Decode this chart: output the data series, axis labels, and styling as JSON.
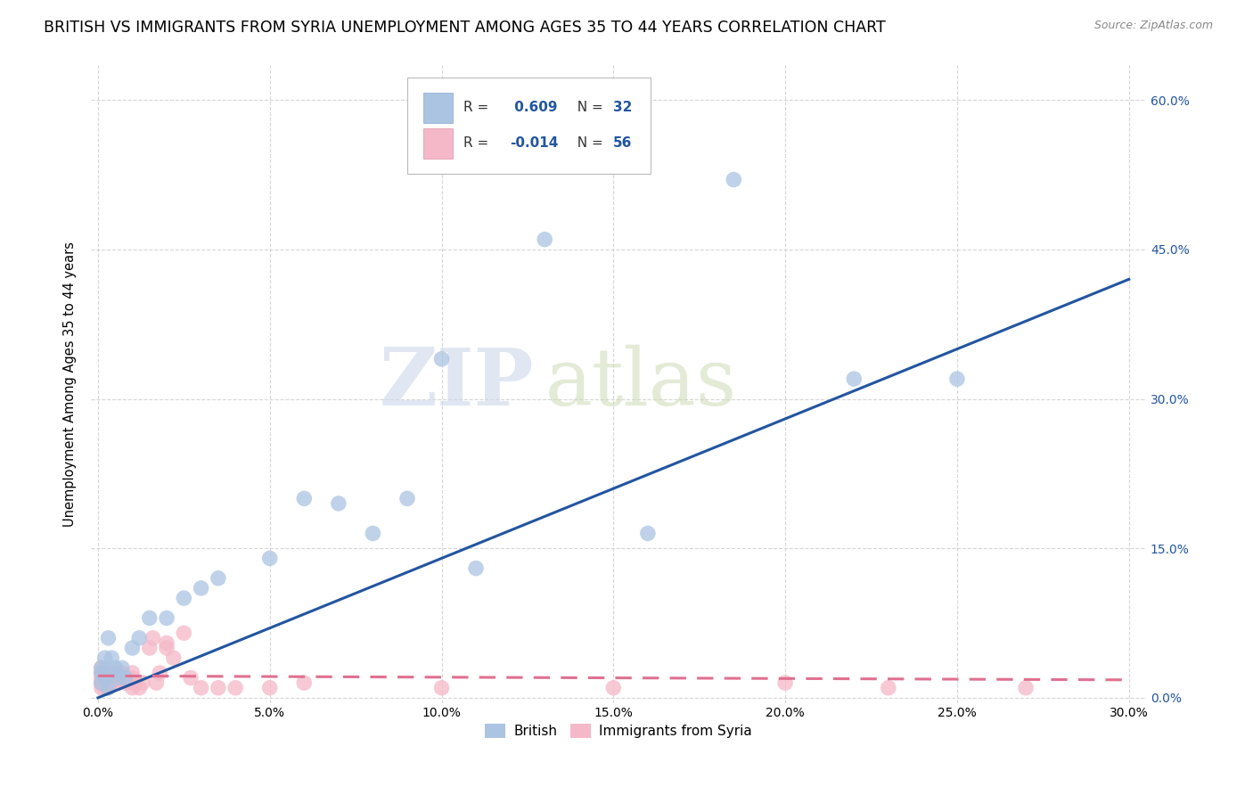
{
  "title": "BRITISH VS IMMIGRANTS FROM SYRIA UNEMPLOYMENT AMONG AGES 35 TO 44 YEARS CORRELATION CHART",
  "source": "Source: ZipAtlas.com",
  "ylabel": "Unemployment Among Ages 35 to 44 years",
  "x_ticks": [
    0.0,
    0.05,
    0.1,
    0.15,
    0.2,
    0.25,
    0.3
  ],
  "x_tick_labels": [
    "0.0%",
    "5.0%",
    "10.0%",
    "15.0%",
    "20.0%",
    "25.0%",
    "30.0%"
  ],
  "y_ticks": [
    0.0,
    0.15,
    0.3,
    0.45,
    0.6
  ],
  "y_tick_labels_right": [
    "0.0%",
    "15.0%",
    "30.0%",
    "45.0%",
    "60.0%"
  ],
  "xlim": [
    -0.002,
    0.305
  ],
  "ylim": [
    -0.005,
    0.635
  ],
  "british_color": "#aac4e2",
  "syria_color": "#f5b8c8",
  "british_line_color": "#2255a0",
  "syria_line_color": "#e07090",
  "british_R": 0.609,
  "british_N": 32,
  "syria_R": -0.014,
  "syria_N": 56,
  "legend_british_label": "British",
  "legend_syria_label": "Immigrants from Syria",
  "watermark_zip": "ZIP",
  "watermark_atlas": "atlas",
  "background_color": "#ffffff",
  "grid_color": "#cccccc",
  "title_fontsize": 12.5,
  "axis_fontsize": 10.5,
  "british_x": [
    0.001,
    0.001,
    0.001,
    0.002,
    0.002,
    0.003,
    0.003,
    0.004,
    0.004,
    0.005,
    0.006,
    0.007,
    0.008,
    0.01,
    0.012,
    0.015,
    0.02,
    0.025,
    0.03,
    0.035,
    0.05,
    0.06,
    0.07,
    0.08,
    0.09,
    0.1,
    0.11,
    0.13,
    0.16,
    0.185,
    0.22,
    0.25
  ],
  "british_y": [
    0.03,
    0.015,
    0.025,
    0.04,
    0.02,
    0.06,
    0.01,
    0.025,
    0.04,
    0.03,
    0.02,
    0.03,
    0.02,
    0.05,
    0.06,
    0.08,
    0.08,
    0.1,
    0.11,
    0.12,
    0.14,
    0.2,
    0.195,
    0.165,
    0.2,
    0.34,
    0.13,
    0.46,
    0.165,
    0.52,
    0.32,
    0.32
  ],
  "syria_x": [
    0.001,
    0.001,
    0.001,
    0.001,
    0.001,
    0.001,
    0.001,
    0.001,
    0.002,
    0.002,
    0.002,
    0.002,
    0.002,
    0.003,
    0.003,
    0.003,
    0.003,
    0.004,
    0.004,
    0.004,
    0.005,
    0.005,
    0.005,
    0.006,
    0.006,
    0.007,
    0.007,
    0.008,
    0.008,
    0.009,
    0.01,
    0.01,
    0.01,
    0.01,
    0.011,
    0.012,
    0.013,
    0.015,
    0.016,
    0.017,
    0.018,
    0.02,
    0.02,
    0.022,
    0.025,
    0.027,
    0.03,
    0.035,
    0.04,
    0.05,
    0.06,
    0.1,
    0.15,
    0.2,
    0.23,
    0.27
  ],
  "syria_y": [
    0.02,
    0.025,
    0.015,
    0.03,
    0.01,
    0.02,
    0.025,
    0.015,
    0.025,
    0.01,
    0.015,
    0.02,
    0.025,
    0.015,
    0.02,
    0.01,
    0.025,
    0.015,
    0.02,
    0.025,
    0.02,
    0.015,
    0.025,
    0.025,
    0.015,
    0.02,
    0.025,
    0.02,
    0.015,
    0.02,
    0.015,
    0.02,
    0.025,
    0.01,
    0.015,
    0.01,
    0.015,
    0.05,
    0.06,
    0.015,
    0.025,
    0.05,
    0.055,
    0.04,
    0.065,
    0.02,
    0.01,
    0.01,
    0.01,
    0.01,
    0.015,
    0.01,
    0.01,
    0.015,
    0.01,
    0.01
  ],
  "brit_line_x0": 0.0,
  "brit_line_y0": 0.0,
  "brit_line_x1": 0.3,
  "brit_line_y1": 0.42,
  "syr_line_x0": 0.0,
  "syr_line_y0": 0.022,
  "syr_line_x1": 0.3,
  "syr_line_y1": 0.018
}
